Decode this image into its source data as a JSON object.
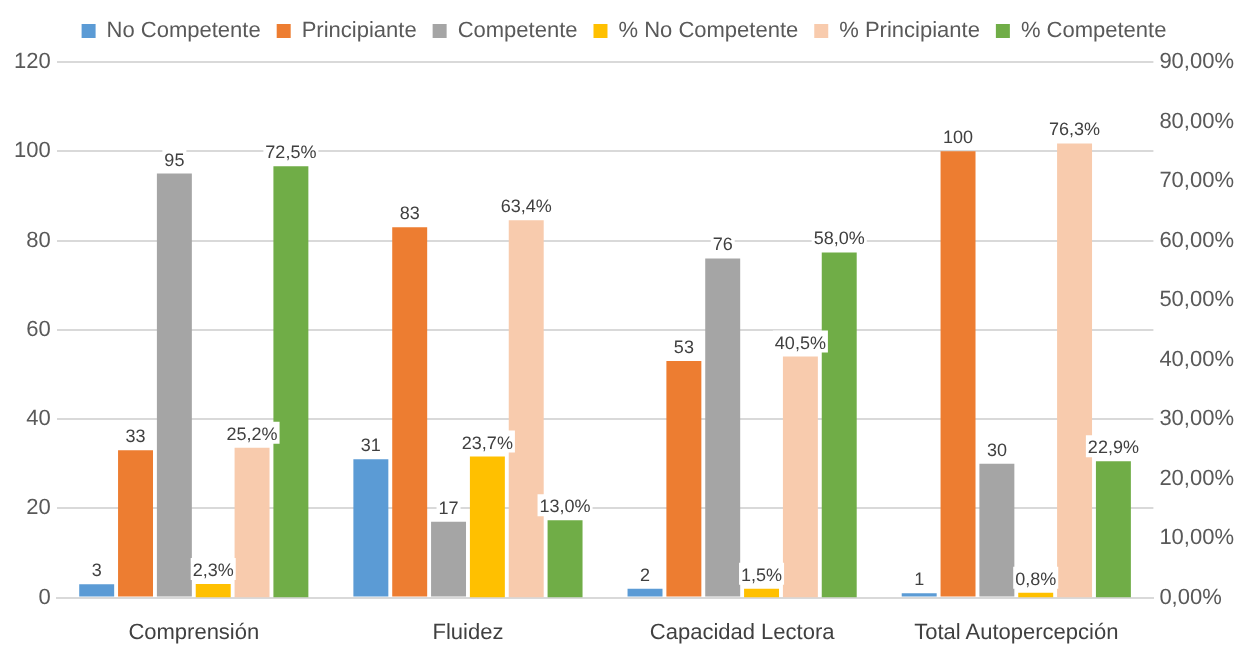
{
  "chart_data": {
    "type": "bar",
    "categories": [
      "Comprensión",
      "Fluidez",
      "Capacidad Lectora",
      "Total Autopercepción"
    ],
    "series": [
      {
        "name": "No Competente",
        "color": "#5b9bd5",
        "values": [
          3,
          31,
          2,
          1
        ],
        "value_labels": [
          "3",
          "31",
          "2",
          "1"
        ]
      },
      {
        "name": "Principiante",
        "color": "#ed7d31",
        "values": [
          33,
          83,
          53,
          100
        ],
        "value_labels": [
          "33",
          "83",
          "53",
          "100"
        ]
      },
      {
        "name": "Competente",
        "color": "#a5a5a5",
        "values": [
          95,
          17,
          76,
          30
        ],
        "value_labels": [
          "95",
          "17",
          "76",
          "30"
        ]
      },
      {
        "name": "% No Competente",
        "color": "#ffc000",
        "axis": "y2",
        "values": [
          2.3,
          23.7,
          1.5,
          0.8
        ],
        "value_labels": [
          "2,3%",
          "23,7%",
          "1,5%",
          "0,8%"
        ]
      },
      {
        "name": "% Principiante",
        "color": "#f8cbad",
        "axis": "y2",
        "values": [
          25.2,
          63.4,
          40.5,
          76.3
        ],
        "value_labels": [
          "25,2%",
          "63,4%",
          "40,5%",
          "76,3%"
        ]
      },
      {
        "name": "% Competente",
        "color": "#70ad47",
        "axis": "y2",
        "values": [
          72.5,
          13.0,
          58.0,
          22.9
        ],
        "value_labels": [
          "72,5%",
          "13,0%",
          "58,0%",
          "22,9%"
        ]
      }
    ],
    "ylim": [
      0,
      120
    ],
    "yticks": [
      0,
      20,
      40,
      60,
      80,
      100,
      120
    ],
    "y2lim": [
      0,
      90
    ],
    "y2ticks": [
      {
        "value": 0,
        "label": "0,00%"
      },
      {
        "value": 10,
        "label": "10,00%"
      },
      {
        "value": 20,
        "label": "20,00%"
      },
      {
        "value": 30,
        "label": "30,00%"
      },
      {
        "value": 40,
        "label": "40,00%"
      },
      {
        "value": 50,
        "label": "50,00%"
      },
      {
        "value": 60,
        "label": "60,00%"
      },
      {
        "value": 70,
        "label": "70,00%"
      },
      {
        "value": 80,
        "label": "80,00%"
      },
      {
        "value": 90,
        "label": "90,00%"
      }
    ],
    "grid": "y",
    "legend": "top"
  }
}
